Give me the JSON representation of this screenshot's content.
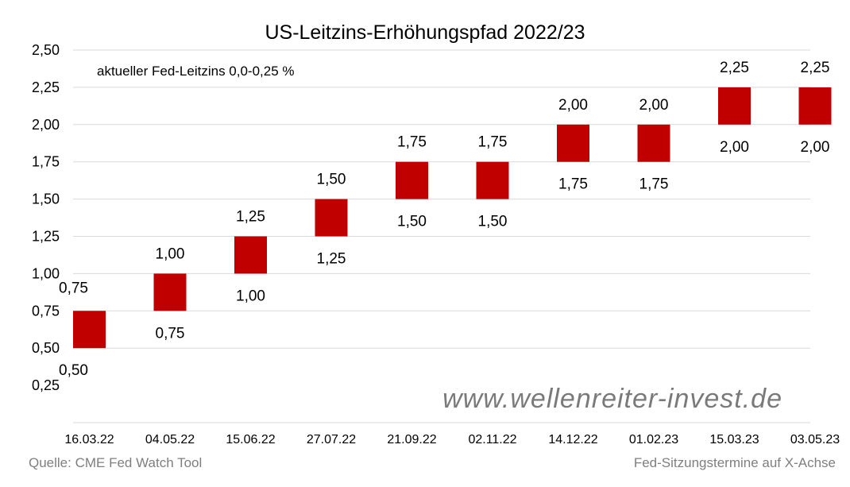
{
  "chart_data": {
    "type": "bar",
    "title": "US-Leitzins-Erhöhungspfad 2022/23",
    "subtitle": "aktueller Fed-Leitzins 0,0-0,25 %",
    "xlabel": "Fed-Sitzungstermine auf X-Achse",
    "ylabel": "",
    "source": "Quelle: CME Fed Watch Tool",
    "watermark": "www.wellenreiter-invest.de",
    "ylim": [
      0,
      2.5
    ],
    "yticks": [
      0.25,
      0.5,
      0.75,
      1.0,
      1.25,
      1.5,
      1.75,
      2.0,
      2.25,
      2.5
    ],
    "ytick_labels": [
      "0,25",
      "0,50",
      "0,75",
      "1,00",
      "1,25",
      "1,50",
      "1,75",
      "2,00",
      "2,25",
      "2,50"
    ],
    "grid": true,
    "categories": [
      "16.03.22",
      "04.05.22",
      "15.06.22",
      "27.07.22",
      "21.09.22",
      "02.11.22",
      "14.12.22",
      "01.02.23",
      "15.03.23",
      "03.05.23"
    ],
    "low": [
      0.5,
      0.75,
      1.0,
      1.25,
      1.5,
      1.5,
      1.75,
      1.75,
      2.0,
      2.0
    ],
    "high": [
      0.75,
      1.0,
      1.25,
      1.5,
      1.75,
      1.75,
      2.0,
      2.0,
      2.25,
      2.25
    ],
    "low_labels": [
      "0,50",
      "0,75",
      "1,00",
      "1,25",
      "1,50",
      "1,50",
      "1,75",
      "1,75",
      "2,00",
      "2,00"
    ],
    "high_labels": [
      "0,75",
      "1,00",
      "1,25",
      "1,50",
      "1,75",
      "1,75",
      "2,00",
      "2,00",
      "2,25",
      "2,25"
    ],
    "bar_color": "#c00000",
    "grid_color": "#d9d9d9"
  }
}
